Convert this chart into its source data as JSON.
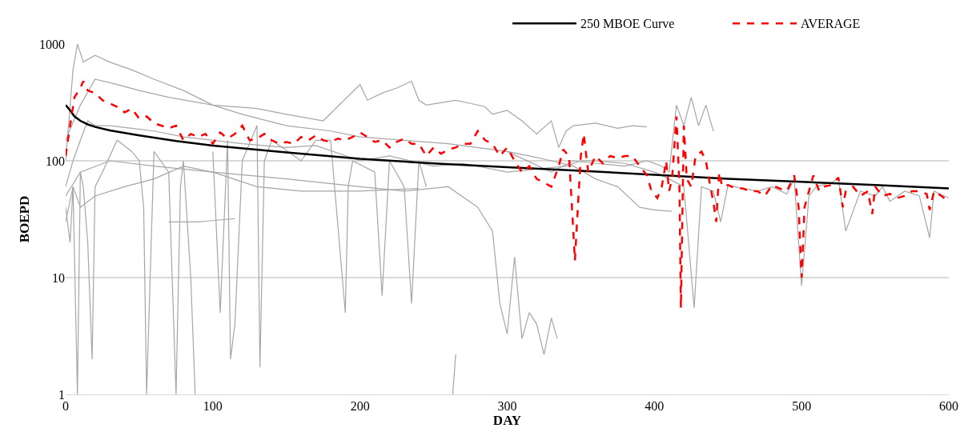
{
  "chart_data": {
    "type": "line",
    "xlabel": "DAY",
    "ylabel": "BOEPD",
    "log": true,
    "xlim": [
      0,
      600
    ],
    "xticks": [
      0,
      100,
      200,
      300,
      400,
      500,
      600
    ],
    "ylim": [
      1,
      1000
    ],
    "yticks": [
      1,
      10,
      100,
      1000
    ],
    "grid": "y",
    "legend": "top right",
    "marker": "none",
    "series": [
      {
        "color": "#a6a6a6",
        "line_style": "solid",
        "x": [
          0,
          5,
          10,
          15,
          20,
          30,
          45,
          60,
          80,
          100,
          120,
          150,
          170,
          200,
          220,
          250,
          270,
          300,
          320,
          340,
          350,
          360,
          380,
          400,
          410,
          420,
          427,
          432,
          440,
          445,
          450,
          460,
          470,
          480,
          490,
          495,
          500,
          505,
          510,
          520,
          525,
          530,
          540,
          550,
          555,
          560,
          570,
          580,
          587,
          590,
          600
        ],
        "values": [
          60,
          100,
          150,
          220,
          200,
          200,
          190,
          180,
          160,
          150,
          140,
          130,
          135,
          100,
          110,
          90,
          95,
          80,
          85,
          90,
          100,
          100,
          95,
          80,
          70,
          60,
          5.5,
          60,
          55,
          30,
          62,
          58,
          55,
          60,
          52,
          70,
          8.5,
          50,
          60,
          65,
          70,
          25,
          55,
          50,
          60,
          45,
          55,
          50,
          22,
          55,
          48
        ]
      },
      {
        "color": "#a6a6a6",
        "line_style": "solid",
        "x": [
          0,
          10,
          20,
          35,
          50,
          70,
          100,
          130,
          150,
          175,
          200,
          205,
          215,
          225,
          235,
          240,
          245,
          265,
          275,
          285,
          290,
          300,
          310,
          320,
          330,
          335,
          340,
          345,
          360,
          375,
          385,
          395
        ],
        "values": [
          150,
          300,
          500,
          450,
          400,
          350,
          300,
          280,
          250,
          220,
          450,
          330,
          380,
          420,
          480,
          330,
          300,
          330,
          310,
          290,
          250,
          270,
          220,
          170,
          220,
          130,
          180,
          200,
          210,
          190,
          200,
          195
        ]
      },
      {
        "color": "#a6a6a6",
        "line_style": "solid",
        "x": [
          0,
          5,
          8,
          12,
          20,
          30,
          45,
          60,
          80,
          100,
          120,
          150,
          180,
          200,
          230,
          260,
          300,
          330,
          345,
          360,
          380,
          395,
          405,
          410,
          415,
          420,
          425,
          430,
          435,
          440
        ],
        "values": [
          100,
          600,
          1000,
          700,
          800,
          700,
          600,
          500,
          400,
          300,
          250,
          200,
          180,
          160,
          150,
          140,
          120,
          80,
          100,
          95,
          90,
          100,
          90,
          80,
          300,
          200,
          350,
          200,
          300,
          180
        ]
      },
      {
        "color": "#a6a6a6",
        "line_style": "solid",
        "x": [
          0,
          10,
          30,
          60,
          100,
          150,
          200,
          230,
          260,
          280,
          290,
          295,
          300,
          305,
          310,
          315,
          320,
          325,
          330,
          334
        ],
        "values": [
          50,
          80,
          100,
          90,
          80,
          70,
          60,
          55,
          60,
          40,
          25,
          6,
          3.3,
          15,
          3,
          5,
          4,
          2.2,
          4.5,
          3
        ]
      },
      {
        "color": "#a6a6a6",
        "line_style": "solid",
        "x": [
          0,
          3,
          5,
          8,
          10,
          12,
          15,
          18,
          20,
          25,
          35,
          45,
          50,
          53,
          55,
          60,
          70,
          75,
          78,
          80,
          85,
          88
        ],
        "values": [
          40,
          20,
          60,
          1,
          80,
          60,
          20,
          2,
          60,
          80,
          150,
          120,
          100,
          40,
          1,
          120,
          80,
          1,
          60,
          100,
          10,
          1
        ]
      },
      {
        "color": "#a6a6a6",
        "line_style": "solid",
        "x": [
          100,
          105,
          110,
          112,
          115,
          120,
          130,
          132,
          135,
          140,
          160,
          170,
          180,
          190,
          192,
          195,
          210,
          215,
          220,
          230,
          235,
          240,
          245
        ],
        "values": [
          120,
          5,
          150,
          2,
          4,
          100,
          200,
          1.7,
          100,
          150,
          100,
          150,
          150,
          5,
          60,
          100,
          80,
          7,
          100,
          60,
          6,
          100,
          60
        ]
      },
      {
        "color": "#a6a6a6",
        "line_style": "solid",
        "x": [
          0,
          5,
          10,
          20,
          40,
          60,
          80,
          100,
          130,
          160,
          200,
          240
        ],
        "values": [
          30,
          60,
          40,
          50,
          60,
          70,
          90,
          80,
          60,
          55,
          55,
          58
        ]
      },
      {
        "color": "#a6a6a6",
        "line_style": "solid",
        "x": [
          70,
          90,
          115
        ],
        "values": [
          30,
          30,
          32
        ]
      },
      {
        "color": "#a6a6a6",
        "line_style": "solid",
        "x": [
          300,
          315,
          330,
          345,
          360,
          375,
          390,
          400,
          412
        ],
        "values": [
          120,
          110,
          100,
          90,
          70,
          60,
          40,
          38,
          37
        ]
      },
      {
        "color": "#a6a6a6",
        "line_style": "solid",
        "x": [
          263,
          265
        ],
        "values": [
          1,
          2.2
        ]
      },
      {
        "name": "250 MBOE Curve",
        "color": "#000000",
        "line_style": "solid",
        "x": [
          0,
          3,
          6,
          10,
          15,
          20,
          30,
          50,
          75,
          100,
          150,
          200,
          250,
          300,
          350,
          400,
          450,
          500,
          550,
          600
        ],
        "values": [
          300,
          270,
          240,
          220,
          205,
          195,
          182,
          165,
          148,
          135,
          118,
          104,
          95,
          88,
          82,
          76,
          70,
          66,
          62,
          58
        ]
      },
      {
        "name": "AVERAGE",
        "color": "#ff0000",
        "line_style": "dashed",
        "x": [
          0,
          3,
          6,
          10,
          12,
          15,
          20,
          25,
          30,
          35,
          40,
          45,
          50,
          55,
          60,
          65,
          70,
          75,
          80,
          85,
          90,
          95,
          100,
          105,
          110,
          115,
          120,
          125,
          130,
          135,
          140,
          145,
          150,
          155,
          160,
          165,
          170,
          175,
          180,
          185,
          190,
          195,
          200,
          205,
          210,
          215,
          220,
          225,
          230,
          235,
          240,
          245,
          250,
          255,
          260,
          265,
          270,
          275,
          280,
          285,
          290,
          295,
          300,
          305,
          310,
          315,
          320,
          325,
          330,
          335,
          338,
          342,
          344,
          346,
          348,
          350,
          352,
          355,
          360,
          365,
          370,
          375,
          380,
          385,
          390,
          395,
          398,
          402,
          405,
          408,
          410,
          412,
          415,
          417,
          418,
          420,
          422,
          425,
          428,
          432,
          435,
          438,
          440,
          442,
          444,
          446,
          450,
          455,
          460,
          465,
          470,
          475,
          480,
          485,
          490,
          495,
          498,
          500,
          502,
          505,
          508,
          512,
          515,
          520,
          525,
          528,
          530,
          535,
          540,
          545,
          548,
          550,
          555,
          560,
          565,
          570,
          575,
          580,
          585,
          587,
          590,
          595,
          600
        ],
        "values": [
          110,
          200,
          350,
          420,
          480,
          400,
          380,
          330,
          310,
          290,
          260,
          280,
          230,
          240,
          210,
          200,
          190,
          200,
          150,
          170,
          160,
          170,
          140,
          175,
          155,
          170,
          200,
          150,
          155,
          170,
          150,
          140,
          145,
          140,
          160,
          150,
          165,
          150,
          145,
          155,
          150,
          160,
          175,
          160,
          145,
          150,
          130,
          145,
          155,
          140,
          140,
          110,
          130,
          115,
          125,
          130,
          140,
          140,
          180,
          150,
          140,
          110,
          130,
          100,
          80,
          90,
          70,
          65,
          60,
          90,
          125,
          110,
          40,
          14,
          40,
          110,
          170,
          80,
          110,
          95,
          110,
          105,
          110,
          110,
          90,
          75,
          55,
          48,
          60,
          100,
          55,
          70,
          240,
          60,
          5.5,
          200,
          70,
          60,
          110,
          120,
          100,
          60,
          45,
          30,
          80,
          60,
          62,
          58,
          58,
          55,
          55,
          50,
          62,
          58,
          55,
          75,
          40,
          10,
          40,
          55,
          75,
          55,
          60,
          62,
          72,
          40,
          55,
          60,
          50,
          55,
          35,
          60,
          50,
          52,
          48,
          50,
          55,
          55,
          52,
          38,
          55,
          50,
          45
        ]
      }
    ]
  }
}
